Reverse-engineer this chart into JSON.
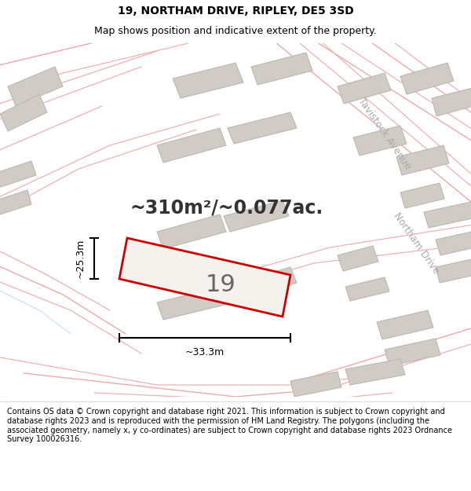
{
  "title": "19, NORTHAM DRIVE, RIPLEY, DE5 3SD",
  "subtitle": "Map shows position and indicative extent of the property.",
  "footer": "Contains OS data © Crown copyright and database right 2021. This information is subject to Crown copyright and database rights 2023 and is reproduced with the permission of HM Land Registry. The polygons (including the associated geometry, namely x, y co-ordinates) are subject to Crown copyright and database rights 2023 Ordnance Survey 100026316.",
  "area_label": "~310m²/~0.077ac.",
  "width_label": "~33.3m",
  "height_label": "~25.3m",
  "property_number": "19",
  "bg_color": "#ffffff",
  "map_bg": "#f5f2ee",
  "building_fill": "#d0cbc4",
  "building_edge": "#bdb8b0",
  "prop_fill": "#f5f2ee",
  "prop_edge": "#cc0000",
  "road_line_color": "#f0a8a8",
  "road_line_color2": "#c8e0f0",
  "dim_color": "#000000",
  "text_color": "#000000",
  "area_fontsize": 17,
  "prop_num_fontsize": 22,
  "street_fontsize": 9,
  "header_title_fontsize": 10,
  "header_sub_fontsize": 9,
  "footer_fontsize": 7
}
